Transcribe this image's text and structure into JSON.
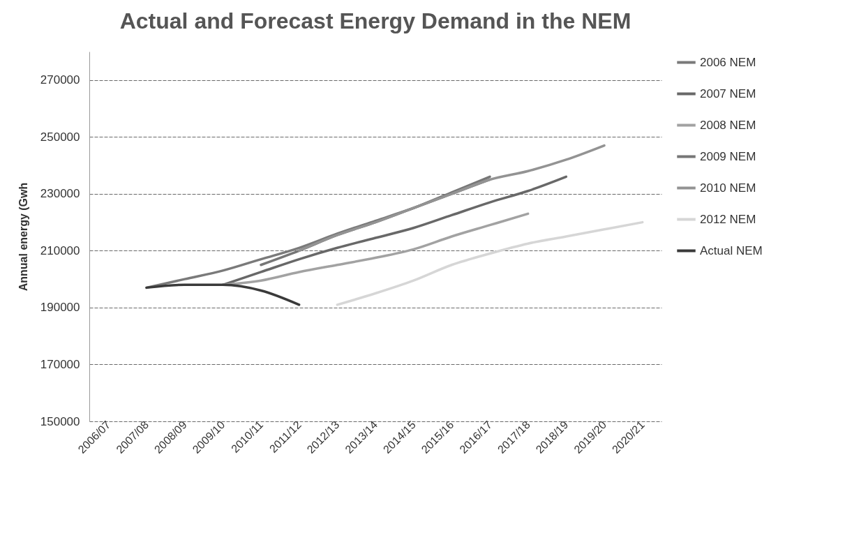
{
  "chart_data": {
    "type": "line",
    "title": "Actual and Forecast Energy Demand in the NEM",
    "ylabel": "Annual energy (Gwh",
    "categories": [
      "2006/07",
      "2007/08",
      "2008/09",
      "2009/10",
      "2010/11",
      "2011/12",
      "2012/13",
      "2013/14",
      "2014/15",
      "2015/16",
      "2016/17",
      "2017/18",
      "2018/19",
      "2019/20",
      "2020/21"
    ],
    "series": [
      {
        "name": "2006 NEM",
        "color": "#7a7a7a",
        "values": [
          null,
          197000,
          200000,
          203000,
          207000,
          211000,
          216000,
          220500,
          225000,
          230000,
          235000,
          null,
          null,
          null,
          null
        ]
      },
      {
        "name": "2007 NEM",
        "color": "#686868",
        "values": [
          null,
          null,
          null,
          198000,
          202500,
          207000,
          211000,
          214500,
          218000,
          222500,
          227000,
          231000,
          236000,
          null,
          null
        ]
      },
      {
        "name": "2008 NEM",
        "color": "#a2a2a2",
        "values": [
          null,
          null,
          null,
          198000,
          199500,
          202500,
          205000,
          207500,
          210500,
          215000,
          219000,
          223000,
          null,
          null,
          null
        ]
      },
      {
        "name": "2009 NEM",
        "color": "#767676",
        "values": [
          null,
          null,
          null,
          null,
          205000,
          210000,
          215500,
          220000,
          225000,
          230500,
          236000,
          null,
          null,
          null,
          null
        ]
      },
      {
        "name": "2010 NEM",
        "color": "#939393",
        "values": [
          null,
          null,
          null,
          null,
          null,
          210000,
          215500,
          220000,
          225000,
          230000,
          235000,
          238000,
          242000,
          247000,
          null
        ]
      },
      {
        "name": "2012 NEM",
        "color": "#d6d6d6",
        "values": [
          null,
          null,
          null,
          null,
          null,
          null,
          191000,
          195000,
          199500,
          205000,
          209000,
          212500,
          215000,
          217500,
          220000
        ]
      },
      {
        "name": "Actual NEM",
        "color": "#3a3a3a",
        "values": [
          null,
          197000,
          198000,
          198000,
          196000,
          191000,
          null,
          null,
          null,
          null,
          null,
          null,
          null,
          null,
          null
        ]
      }
    ],
    "ylim": [
      150000,
      280000
    ],
    "yticks": [
      150000,
      170000,
      190000,
      210000,
      230000,
      250000,
      270000
    ],
    "grid": "y",
    "legend": "right",
    "marker": "none",
    "line_style": "solid"
  }
}
